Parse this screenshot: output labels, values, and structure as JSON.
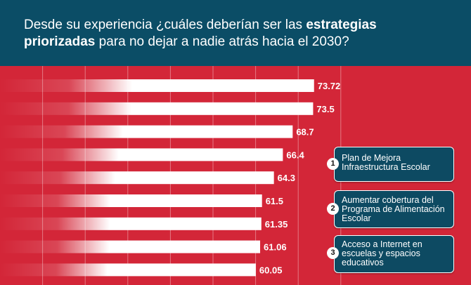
{
  "header": {
    "line1_a": "Desde su experiencia ¿cuáles deberían ser las ",
    "line1_b": "estrategias",
    "line2_a": "priorizadas",
    "line2_b": " para no dejar a nadie atrás hacia el 2030?"
  },
  "colors": {
    "header_bg": "#0b4d66",
    "chart_bg": "#d32638",
    "bar": "#ffffff",
    "legend_bg": "#0d4a62"
  },
  "legend": [
    {
      "num": "1",
      "label": "Plan de Mejora Infraestructura Escolar"
    },
    {
      "num": "2",
      "label": "Aumentar cobertura del Programa de Alimentación Escolar"
    },
    {
      "num": "3",
      "label": "Acceso a Internet en escuelas y espacios educativos"
    }
  ],
  "chart_data": {
    "type": "bar",
    "orientation": "horizontal",
    "values": [
      73.72,
      73.5,
      68.7,
      66.4,
      64.3,
      61.5,
      61.35,
      61.06,
      60.05
    ],
    "labels": [
      "73.72",
      "73.5",
      "68.7",
      "66.4",
      "64.3",
      "61.5",
      "61.35",
      "61.06",
      "60.05"
    ],
    "xlim": [
      0,
      80
    ],
    "grid": true
  }
}
